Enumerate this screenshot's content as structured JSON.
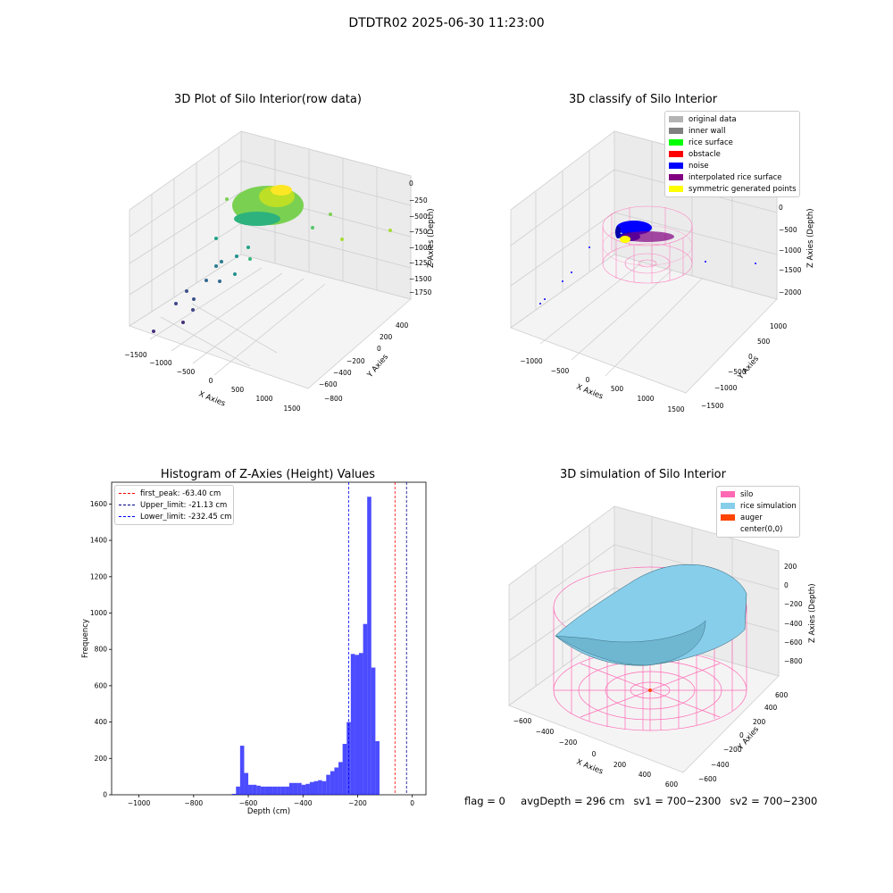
{
  "suptitle": "DTDTR02 2025-06-30 11:23:00",
  "panel1": {
    "title": "3D Plot of Silo Interior(row data)",
    "xlabel": "X Axies",
    "ylabel": "Y Axies",
    "zlabel": "Z Axies (Depth)",
    "xticks": [
      "−1500",
      "−1000",
      "−500",
      "0",
      "500",
      "1000",
      "1500"
    ],
    "yticks": [
      "400",
      "200",
      "0",
      "−200",
      "−400",
      "−600",
      "−800"
    ],
    "zticks": [
      "0",
      "−250",
      "−500",
      "−750",
      "−1000",
      "−1250",
      "−1500",
      "−1750"
    ]
  },
  "panel2": {
    "title": "3D classify of Silo Interior",
    "xlabel": "X Axies",
    "ylabel": "Y Axies",
    "zlabel": "Z Axies (Depth)",
    "xticks": [
      "−1000",
      "−500",
      "0",
      "500",
      "1000",
      "1500"
    ],
    "yticks": [
      "1000",
      "500",
      "0",
      "−500",
      "−1000",
      "−1500"
    ],
    "zticks": [
      "0",
      "−500",
      "−1000",
      "−1500",
      "−2000"
    ],
    "legend": [
      {
        "label": "original data",
        "color": "#b3b3b3"
      },
      {
        "label": "inner wall",
        "color": "#808080"
      },
      {
        "label": "rice surface",
        "color": "#00ff00"
      },
      {
        "label": "obstacle",
        "color": "#ff0000"
      },
      {
        "label": "noise",
        "color": "#0000ff"
      },
      {
        "label": "interpolated rice surface",
        "color": "#800080"
      },
      {
        "label": "symmetric generated points",
        "color": "#ffff00"
      }
    ]
  },
  "panel4": {
    "title": "3D simulation of Silo Interior",
    "xlabel": "X Axies",
    "ylabel": "Y Axies",
    "zlabel": "Z Axies (Depth)",
    "xticks": [
      "−600",
      "−400",
      "−200",
      "0",
      "200",
      "400",
      "600"
    ],
    "yticks": [
      "600",
      "400",
      "200",
      "0",
      "−200",
      "−400",
      "−600"
    ],
    "zticks": [
      "200",
      "0",
      "−200",
      "−400",
      "−600",
      "−800"
    ],
    "legend": [
      {
        "label": "silo",
        "color": "#ff69b4"
      },
      {
        "label": "rice simulation",
        "color": "#87ceeb"
      },
      {
        "label": "auger",
        "color": "#ff4500"
      },
      {
        "label": "center(0,0)",
        "color": "#ffffff"
      }
    ]
  },
  "status": {
    "flag": "flag = 0",
    "avg": "avgDepth = 296 cm",
    "sv1": "sv1 = 700~2300",
    "sv2": "sv2 = 700~2300"
  },
  "chart_data": [
    {
      "type": "scatter",
      "title": "3D Plot of Silo Interior(row data)",
      "note": "3D scatter of raw silo interior points",
      "xlabel": "X Axies",
      "ylabel": "Y Axies",
      "zlabel": "Z Axies (Depth)",
      "xlim": [
        -1500,
        1500
      ],
      "ylim": [
        -800,
        400
      ],
      "zlim": [
        -1750,
        0
      ]
    },
    {
      "type": "scatter",
      "title": "3D classify of Silo Interior",
      "xlabel": "X Axies",
      "ylabel": "Y Axies",
      "zlabel": "Z Axies (Depth)",
      "xlim": [
        -1000,
        1500
      ],
      "ylim": [
        -1500,
        1000
      ],
      "zlim": [
        -2000,
        0
      ],
      "series": [
        {
          "name": "original data"
        },
        {
          "name": "inner wall"
        },
        {
          "name": "rice surface"
        },
        {
          "name": "obstacle"
        },
        {
          "name": "noise"
        },
        {
          "name": "interpolated rice surface"
        },
        {
          "name": "symmetric generated points"
        }
      ]
    },
    {
      "type": "bar",
      "title": "Histogram of Z-Axies (Height) Values",
      "xlabel": "Depth (cm)",
      "ylabel": "Frequency",
      "xlim": [
        -1100,
        50
      ],
      "ylim": [
        0,
        1720
      ],
      "xticks": [
        -1000,
        -800,
        -600,
        -400,
        -200,
        0
      ],
      "yticks": [
        0,
        200,
        400,
        600,
        800,
        1000,
        1200,
        1400,
        1600
      ],
      "bin_width": 15,
      "bins": [
        [
          -660,
          5
        ],
        [
          -645,
          45
        ],
        [
          -630,
          270
        ],
        [
          -615,
          120
        ],
        [
          -600,
          55
        ],
        [
          -585,
          55
        ],
        [
          -570,
          50
        ],
        [
          -555,
          45
        ],
        [
          -540,
          45
        ],
        [
          -525,
          45
        ],
        [
          -510,
          45
        ],
        [
          -495,
          45
        ],
        [
          -480,
          45
        ],
        [
          -465,
          45
        ],
        [
          -450,
          65
        ],
        [
          -435,
          65
        ],
        [
          -420,
          65
        ],
        [
          -405,
          55
        ],
        [
          -390,
          60
        ],
        [
          -375,
          70
        ],
        [
          -360,
          75
        ],
        [
          -345,
          80
        ],
        [
          -330,
          75
        ],
        [
          -315,
          110
        ],
        [
          -300,
          130
        ],
        [
          -285,
          150
        ],
        [
          -270,
          180
        ],
        [
          -255,
          280
        ],
        [
          -240,
          400
        ],
        [
          -225,
          775
        ],
        [
          -210,
          770
        ],
        [
          -195,
          780
        ],
        [
          -180,
          940
        ],
        [
          -165,
          1640
        ],
        [
          -150,
          700
        ],
        [
          -135,
          295
        ]
      ],
      "lines": [
        {
          "label": "first_peak: -63.40 cm",
          "x": -63.4,
          "color": "#ff0000"
        },
        {
          "label": "Upper_limit: -21.13 cm",
          "x": -21.13,
          "color": "#00008b"
        },
        {
          "label": "Lower_limit: -232.45 cm",
          "x": -232.45,
          "color": "#0000ff"
        }
      ]
    },
    {
      "type": "scatter",
      "title": "3D simulation of Silo Interior",
      "xlabel": "X Axies",
      "ylabel": "Y Axies",
      "zlabel": "Z Axies (Depth)",
      "xlim": [
        -600,
        600
      ],
      "ylim": [
        -600,
        600
      ],
      "zlim": [
        -800,
        200
      ],
      "series": [
        {
          "name": "silo"
        },
        {
          "name": "rice simulation"
        },
        {
          "name": "auger"
        },
        {
          "name": "center(0,0)"
        }
      ]
    }
  ]
}
